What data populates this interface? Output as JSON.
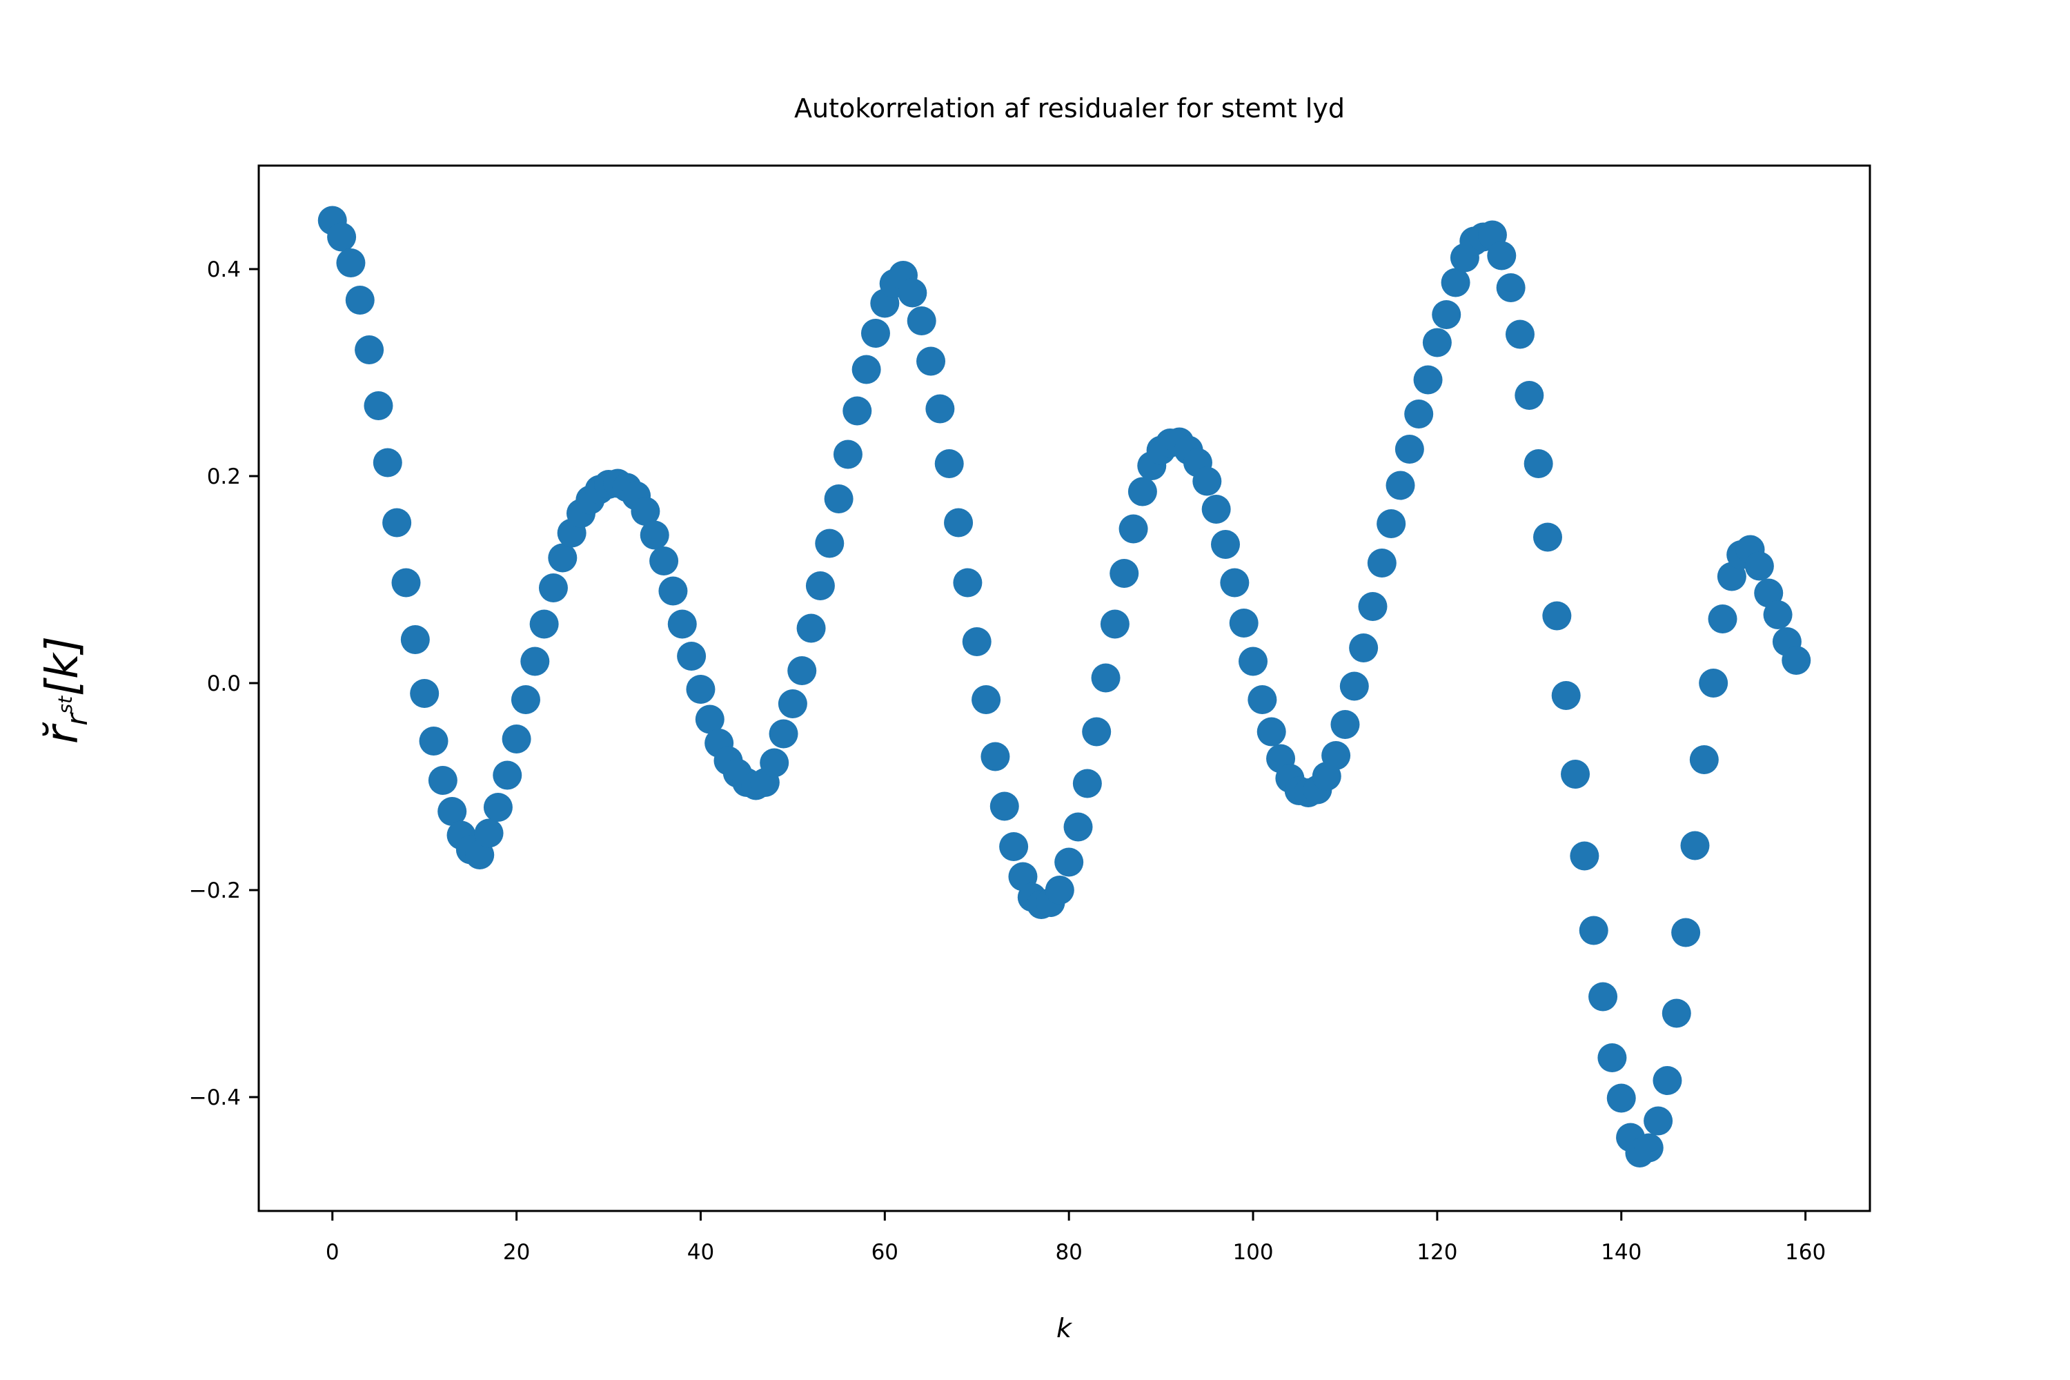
{
  "chart_data": {
    "type": "scatter",
    "title": "Autokorrelation af residualer for stemt lyd",
    "xlabel": "k",
    "ylabel": {
      "main": "r̆",
      "sub": "r",
      "subsup": "st",
      "bracket": "[k]"
    },
    "xlim": [
      -8,
      167
    ],
    "ylim": [
      -0.51,
      0.5
    ],
    "xticks": [
      0,
      20,
      40,
      60,
      80,
      100,
      120,
      140,
      160
    ],
    "xtick_labels": [
      "0",
      "20",
      "40",
      "60",
      "80",
      "100",
      "120",
      "140",
      "160"
    ],
    "yticks": [
      -0.4,
      -0.2,
      0.0,
      0.2,
      0.4
    ],
    "ytick_labels": [
      "−0.4",
      "−0.2",
      "0.0",
      "0.2",
      "0.4"
    ],
    "grid": false,
    "legend": "none",
    "marker_color": "#1f77b4",
    "x": [
      0,
      1,
      2,
      3,
      4,
      5,
      6,
      7,
      8,
      9,
      10,
      11,
      12,
      13,
      14,
      15,
      16,
      17,
      18,
      19,
      20,
      21,
      22,
      23,
      24,
      25,
      26,
      27,
      28,
      29,
      30,
      31,
      32,
      33,
      34,
      35,
      36,
      37,
      38,
      39,
      40,
      41,
      42,
      43,
      44,
      45,
      46,
      47,
      48,
      49,
      50,
      51,
      52,
      53,
      54,
      55,
      56,
      57,
      58,
      59,
      60,
      61,
      62,
      63,
      64,
      65,
      66,
      67,
      68,
      69,
      70,
      71,
      72,
      73,
      74,
      75,
      76,
      77,
      78,
      79,
      80,
      81,
      82,
      83,
      84,
      85,
      86,
      87,
      88,
      89,
      90,
      91,
      92,
      93,
      94,
      95,
      96,
      97,
      98,
      99,
      100,
      101,
      102,
      103,
      104,
      105,
      106,
      107,
      108,
      109,
      110,
      111,
      112,
      113,
      114,
      115,
      116,
      117,
      118,
      119,
      120,
      121,
      122,
      123,
      124,
      125,
      126,
      127,
      128,
      129,
      130,
      131,
      132,
      133,
      134,
      135,
      136,
      137,
      138,
      139,
      140,
      141,
      142,
      143,
      144,
      145,
      146,
      147,
      148,
      149,
      150,
      151,
      152,
      153,
      154,
      155,
      156,
      157,
      158,
      159
    ],
    "y": [
      0.447,
      0.431,
      0.406,
      0.37,
      0.322,
      0.268,
      0.213,
      0.155,
      0.097,
      0.042,
      -0.01,
      -0.056,
      -0.094,
      -0.124,
      -0.147,
      -0.161,
      -0.166,
      -0.145,
      -0.12,
      -0.089,
      -0.054,
      -0.016,
      0.021,
      0.057,
      0.092,
      0.121,
      0.145,
      0.164,
      0.177,
      0.187,
      0.192,
      0.193,
      0.189,
      0.181,
      0.166,
      0.143,
      0.118,
      0.089,
      0.057,
      0.026,
      -0.006,
      -0.035,
      -0.058,
      -0.075,
      -0.087,
      -0.096,
      -0.099,
      -0.096,
      -0.077,
      -0.049,
      -0.02,
      0.012,
      0.053,
      0.094,
      0.135,
      0.178,
      0.221,
      0.263,
      0.303,
      0.338,
      0.367,
      0.386,
      0.394,
      0.377,
      0.35,
      0.311,
      0.265,
      0.212,
      0.155,
      0.097,
      0.04,
      -0.016,
      -0.071,
      -0.119,
      -0.158,
      -0.187,
      -0.207,
      -0.214,
      -0.212,
      -0.2,
      -0.173,
      -0.139,
      -0.097,
      -0.047,
      0.005,
      0.057,
      0.106,
      0.149,
      0.185,
      0.21,
      0.225,
      0.232,
      0.233,
      0.225,
      0.213,
      0.195,
      0.168,
      0.134,
      0.097,
      0.058,
      0.021,
      -0.016,
      -0.047,
      -0.073,
      -0.092,
      -0.104,
      -0.106,
      -0.103,
      -0.09,
      -0.07,
      -0.04,
      -0.003,
      0.034,
      0.074,
      0.116,
      0.154,
      0.191,
      0.226,
      0.26,
      0.293,
      0.329,
      0.356,
      0.387,
      0.411,
      0.427,
      0.431,
      0.433,
      0.413,
      0.382,
      0.337,
      0.278,
      0.212,
      0.141,
      0.065,
      -0.012,
      -0.088,
      -0.167,
      -0.239,
      -0.303,
      -0.362,
      -0.401,
      -0.439,
      -0.454,
      -0.449,
      -0.423,
      -0.384,
      -0.319,
      -0.241,
      -0.157,
      -0.074,
      0.0,
      0.062,
      0.103,
      0.124,
      0.129,
      0.113,
      0.087,
      0.066,
      0.04,
      0.022
    ]
  }
}
